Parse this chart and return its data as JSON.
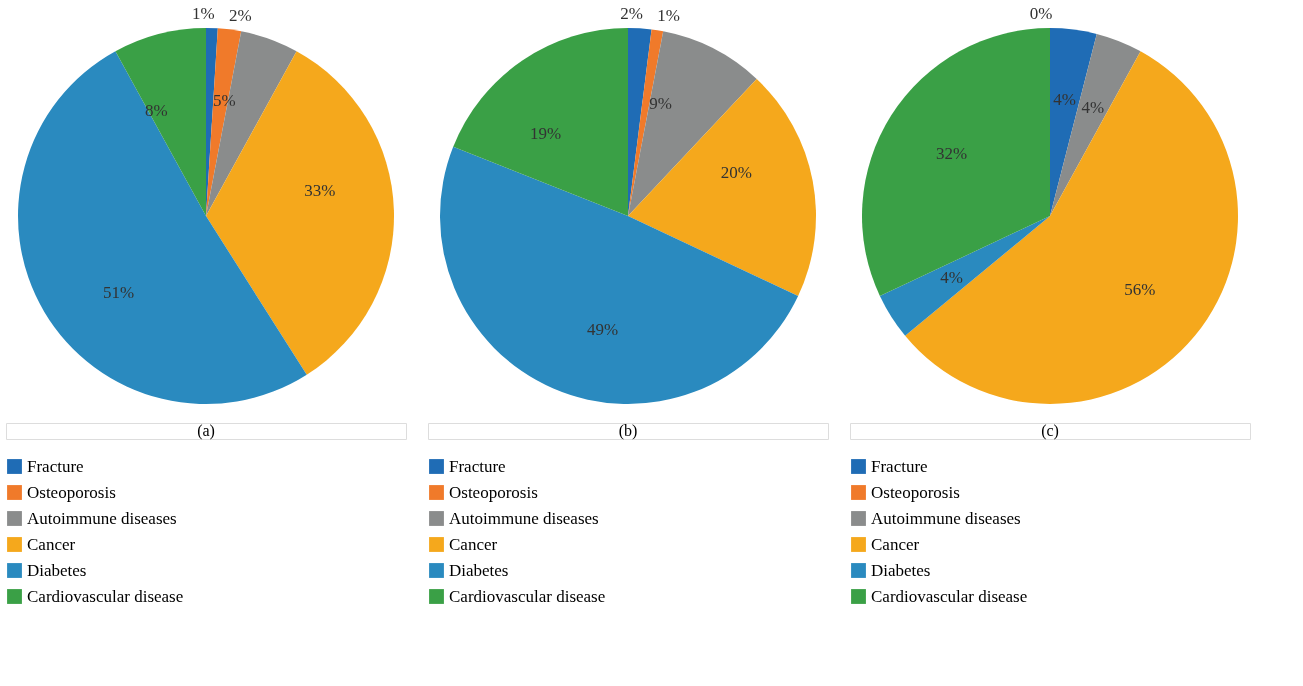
{
  "chart_data": [
    {
      "type": "pie",
      "categories": [
        "Fracture",
        "Osteoporosis",
        "Autoimmune diseases",
        "Cancer",
        "Diabetes",
        "Cardiovascular disease"
      ],
      "values": [
        1,
        2,
        5,
        33,
        51,
        8
      ],
      "value_labels": [
        "1%",
        "2%",
        "5%",
        "33%",
        "51%",
        "8%"
      ],
      "colors": [
        "#1f6cb5",
        "#f07a2a",
        "#8a8c8c",
        "#f5a81c",
        "#2a8abf",
        "#3aa046"
      ],
      "legend": "bottom",
      "annotations": [
        "(a)"
      ]
    },
    {
      "type": "pie",
      "categories": [
        "Fracture",
        "Osteoporosis",
        "Autoimmune diseases",
        "Cancer",
        "Diabetes",
        "Cardiovascular disease"
      ],
      "values": [
        2,
        1,
        9,
        20,
        49,
        19
      ],
      "value_labels": [
        "2%",
        "1%",
        "9%",
        "20%",
        "49%",
        "19%"
      ],
      "colors": [
        "#1f6cb5",
        "#f07a2a",
        "#8a8c8c",
        "#f5a81c",
        "#2a8abf",
        "#3aa046"
      ],
      "legend": "bottom",
      "annotations": [
        "(b)"
      ]
    },
    {
      "type": "pie",
      "categories": [
        "Fracture",
        "Osteoporosis",
        "Autoimmune diseases",
        "Cancer",
        "Diabetes",
        "Cardiovascular disease"
      ],
      "values": [
        4,
        0,
        4,
        56,
        4,
        32
      ],
      "value_labels": [
        "4%",
        "0%",
        "4%",
        "56%",
        "4%",
        "32%"
      ],
      "colors": [
        "#1f6cb5",
        "#f07a2a",
        "#8a8c8c",
        "#f5a81c",
        "#2a8abf",
        "#3aa046"
      ],
      "legend": "bottom",
      "annotations": [
        "(c)"
      ]
    }
  ]
}
